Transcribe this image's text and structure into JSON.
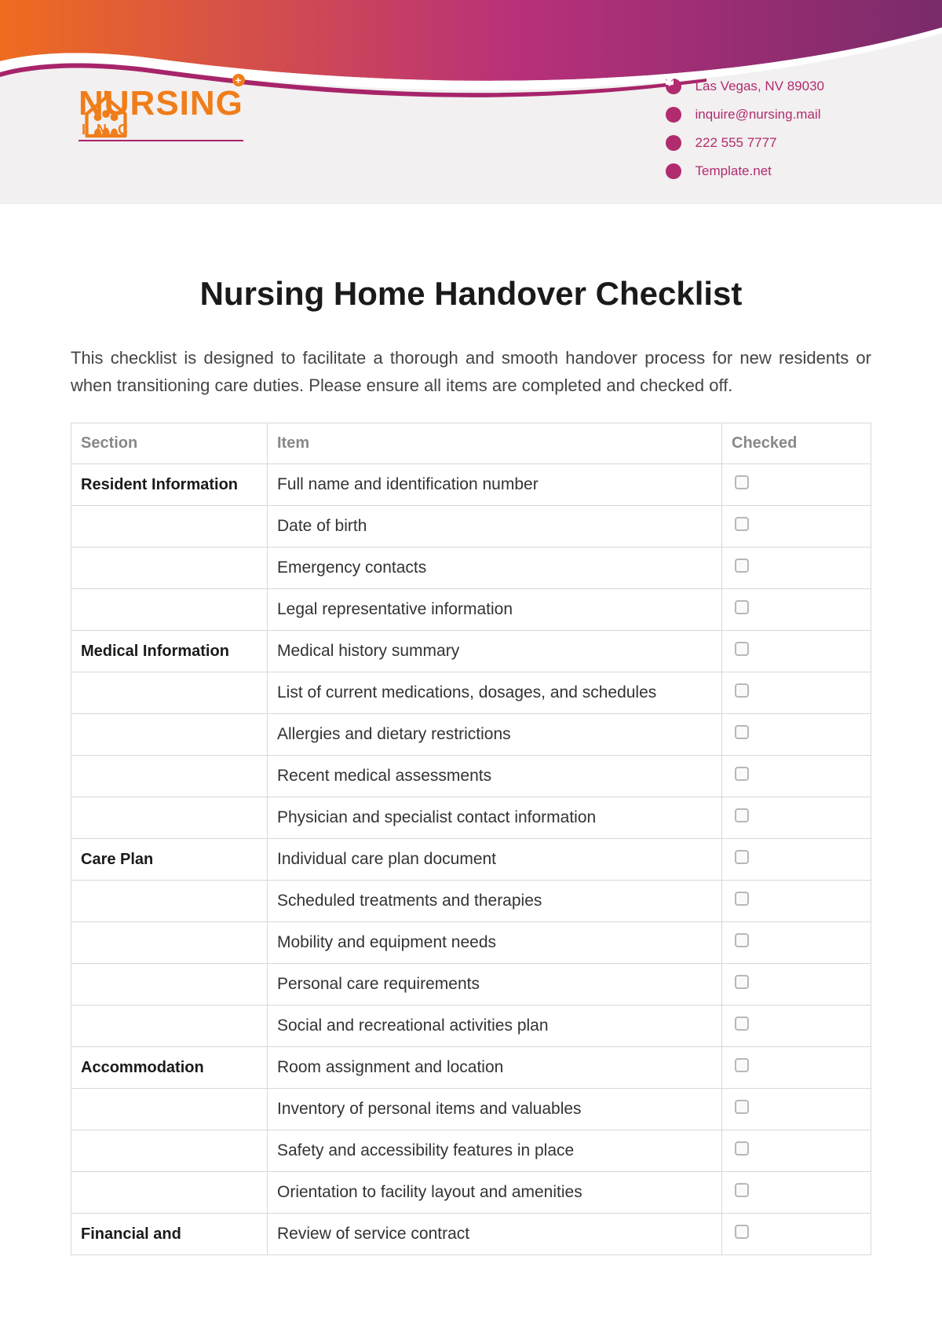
{
  "brand": {
    "name_main": "NURSING",
    "name_sub": "INC",
    "color_primary": "#f07d1a",
    "color_accent": "#a7246a"
  },
  "header_colors": {
    "gradient_start": "#ef6c1f",
    "gradient_mid": "#b8307a",
    "gradient_end": "#7a2b6a",
    "background": "#f2f0f0"
  },
  "contact": [
    {
      "icon": "pin",
      "text": "Las Vegas, NV 89030"
    },
    {
      "icon": "mail",
      "text": "inquire@nursing.mail"
    },
    {
      "icon": "phone",
      "text": "222 555 7777"
    },
    {
      "icon": "cursor",
      "text": "Template.net"
    }
  ],
  "title": "Nursing Home Handover Checklist",
  "intro": "This checklist is designed to facilitate a thorough and smooth handover process for new residents or when transitioning care duties. Please ensure all items are completed and checked off.",
  "table": {
    "headers": [
      "Section",
      "Item",
      "Checked"
    ],
    "rows": [
      {
        "section": "Resident Information",
        "item": "Full name and identification number"
      },
      {
        "section": "",
        "item": "Date of birth"
      },
      {
        "section": "",
        "item": "Emergency contacts"
      },
      {
        "section": "",
        "item": "Legal representative information"
      },
      {
        "section": "Medical Information",
        "item": "Medical history summary"
      },
      {
        "section": "",
        "item": "List of current medications, dosages, and schedules"
      },
      {
        "section": "",
        "item": "Allergies and dietary restrictions"
      },
      {
        "section": "",
        "item": "Recent medical assessments"
      },
      {
        "section": "",
        "item": "Physician and specialist contact information"
      },
      {
        "section": "Care Plan",
        "item": "Individual care plan document"
      },
      {
        "section": "",
        "item": "Scheduled treatments and therapies"
      },
      {
        "section": "",
        "item": "Mobility and equipment needs"
      },
      {
        "section": "",
        "item": "Personal care requirements"
      },
      {
        "section": "",
        "item": "Social and recreational activities plan"
      },
      {
        "section": "Accommodation",
        "item": "Room assignment and location"
      },
      {
        "section": "",
        "item": "Inventory of personal items and valuables"
      },
      {
        "section": "",
        "item": "Safety and accessibility features in place"
      },
      {
        "section": "",
        "item": "Orientation to facility layout and amenities"
      },
      {
        "section": "Financial and",
        "item": "Review of service contract"
      }
    ]
  }
}
